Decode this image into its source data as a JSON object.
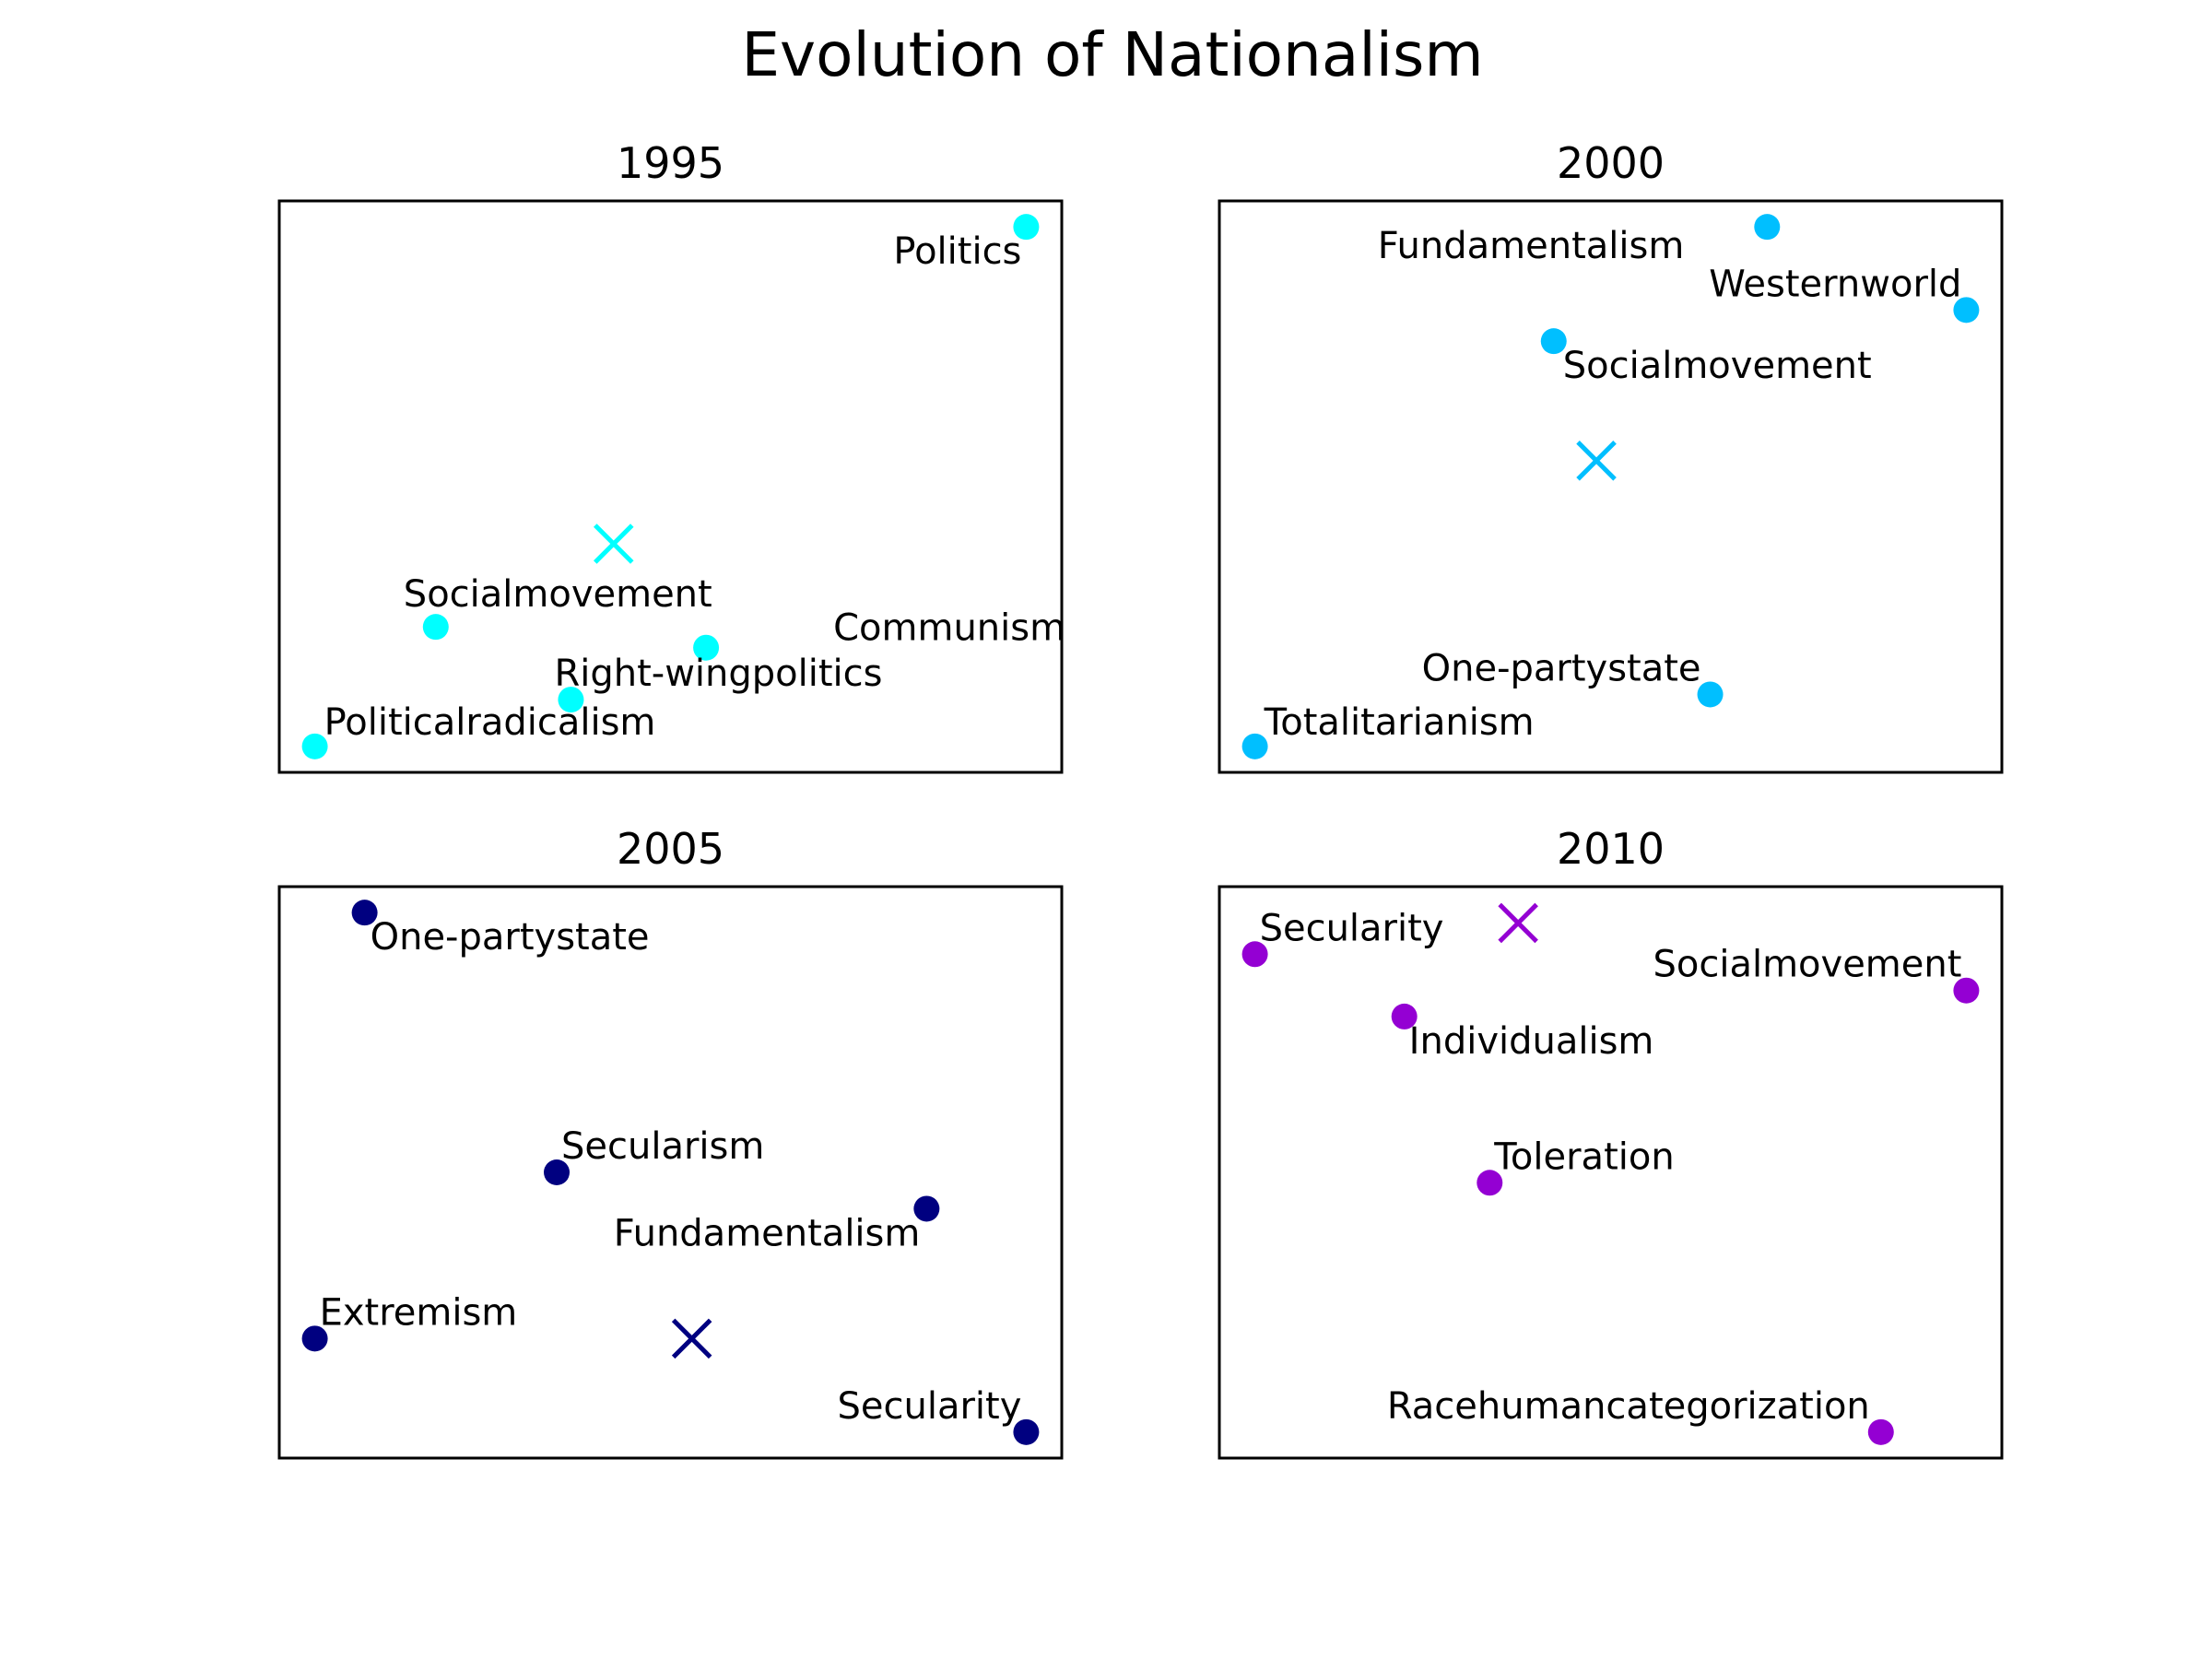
{
  "figure": {
    "title": "Evolution of Nationalism"
  },
  "chart_data": [
    {
      "type": "scatter",
      "title": "1995",
      "color": "#00ffff",
      "xlabel": "",
      "ylabel": "",
      "grid": false,
      "ticks_shown": false,
      "xlim": [
        -0.05,
        1.05
      ],
      "ylim": [
        -0.05,
        1.05
      ],
      "points": [
        {
          "label": "Politics",
          "x": 1.0,
          "y": 1.0
        },
        {
          "label": "Socialmovement",
          "x": 0.17,
          "y": 0.23
        },
        {
          "label": "Communism",
          "x": 0.55,
          "y": 0.19
        },
        {
          "label": "Right-wingpolitics",
          "x": 0.36,
          "y": 0.09
        },
        {
          "label": "Politicalradicalism",
          "x": 0.0,
          "y": 0.0
        }
      ],
      "centroid": {
        "x": 0.42,
        "y": 0.39
      }
    },
    {
      "type": "scatter",
      "title": "2000",
      "color": "#00bfff",
      "xlabel": "",
      "ylabel": "",
      "grid": false,
      "ticks_shown": false,
      "xlim": [
        -0.05,
        1.05
      ],
      "ylim": [
        -0.05,
        1.05
      ],
      "points": [
        {
          "label": "Fundamentalism",
          "x": 0.72,
          "y": 1.0
        },
        {
          "label": "Westernworld",
          "x": 1.0,
          "y": 0.84
        },
        {
          "label": "Socialmovement",
          "x": 0.42,
          "y": 0.78
        },
        {
          "label": "One-partystate",
          "x": 0.64,
          "y": 0.1
        },
        {
          "label": "Totalitarianism",
          "x": 0.0,
          "y": 0.0
        }
      ],
      "centroid": {
        "x": 0.48,
        "y": 0.55
      }
    },
    {
      "type": "scatter",
      "title": "2005",
      "color": "#000080",
      "xlabel": "",
      "ylabel": "",
      "grid": false,
      "ticks_shown": false,
      "xlim": [
        -0.05,
        1.05
      ],
      "ylim": [
        -0.05,
        1.05
      ],
      "points": [
        {
          "label": "One-partystate",
          "x": 0.07,
          "y": 1.0
        },
        {
          "label": "Secularism",
          "x": 0.34,
          "y": 0.5
        },
        {
          "label": "Fundamentalism",
          "x": 0.86,
          "y": 0.43
        },
        {
          "label": "Extremism",
          "x": 0.0,
          "y": 0.18
        },
        {
          "label": "Secularity",
          "x": 1.0,
          "y": 0.0
        }
      ],
      "centroid": {
        "x": 0.53,
        "y": 0.18
      }
    },
    {
      "type": "scatter",
      "title": "2010",
      "color": "#9400d3",
      "xlabel": "",
      "ylabel": "",
      "grid": false,
      "ticks_shown": false,
      "xlim": [
        -0.05,
        1.05
      ],
      "ylim": [
        -0.05,
        1.05
      ],
      "points": [
        {
          "label": "Secularity",
          "x": 0.0,
          "y": 0.92
        },
        {
          "label": "Socialmovement",
          "x": 1.0,
          "y": 0.85
        },
        {
          "label": "Individualism",
          "x": 0.21,
          "y": 0.8
        },
        {
          "label": "Toleration",
          "x": 0.33,
          "y": 0.48
        },
        {
          "label": "Racehumancategorization",
          "x": 0.88,
          "y": 0.0
        }
      ],
      "centroid": {
        "x": 0.37,
        "y": 0.98
      }
    }
  ]
}
